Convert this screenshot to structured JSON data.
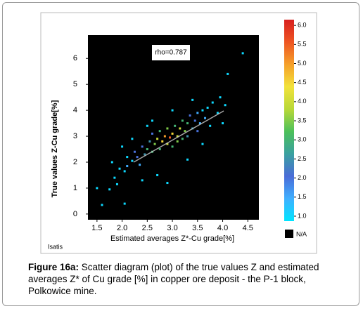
{
  "chart_data": {
    "type": "scatter",
    "annotation": "rho=0.787",
    "footer": "Isatis",
    "xlabel": "Estimated averages Z*-Cu grade[%]",
    "ylabel": "True values Z-Cu grade[%]",
    "xlim": [
      1.32,
      4.72
    ],
    "ylim": [
      -0.22,
      6.9
    ],
    "xticks": [
      1.5,
      {
        "value": 2,
        "label": "2.0"
      },
      2.5,
      {
        "value": 3,
        "label": "3.0"
      },
      3.5,
      {
        "value": 4,
        "label": "4.0"
      },
      4.5
    ],
    "yticks": [
      0,
      1,
      2,
      3,
      4,
      5,
      6
    ],
    "background": "#000000",
    "clim": [
      0.87,
      6.15
    ],
    "colorscale": [
      "#00e5ff",
      "#3fb0ff",
      "#4a6cd8",
      "#3aa0a0",
      "#4cc05a",
      "#b8d838",
      "#f2e23a",
      "#f5a02a",
      "#ee5522",
      "#d82020"
    ],
    "cticks": [
      {
        "value": 1,
        "label": "1.0"
      },
      1.5,
      {
        "value": 2,
        "label": "2.0"
      },
      2.5,
      {
        "value": 3,
        "label": "3.0"
      },
      3.5,
      {
        "value": 4,
        "label": "4.0"
      },
      4.5,
      {
        "value": 5,
        "label": "5.0"
      },
      5.5,
      {
        "value": 6,
        "label": "6.0"
      }
    ],
    "na_label": "N/A",
    "x": [
      1.6,
      1.75,
      1.85,
      1.9,
      1.95,
      2.05,
      2.1,
      2.1,
      2.2,
      2.25,
      2.3,
      2.35,
      2.4,
      2.45,
      2.5,
      2.55,
      2.6,
      2.6,
      2.65,
      2.7,
      2.75,
      2.75,
      2.8,
      2.85,
      2.9,
      2.9,
      2.95,
      3.0,
      3.0,
      3.05,
      3.1,
      3.1,
      3.15,
      3.2,
      3.2,
      3.25,
      3.3,
      3.3,
      3.35,
      3.4,
      3.45,
      3.5,
      3.5,
      3.55,
      3.6,
      3.65,
      3.7,
      3.75,
      3.8,
      3.9,
      3.95,
      4.05,
      4.1,
      4.4,
      2.4,
      2.7,
      2.2,
      2.5,
      1.5,
      2.05,
      2.9,
      3.3,
      2.6,
      3.0,
      3.4,
      1.8,
      2.0,
      3.6,
      4.0
    ],
    "y": [
      0.35,
      0.95,
      1.4,
      1.15,
      1.75,
      1.65,
      2.2,
      1.85,
      2.05,
      2.4,
      2.2,
      1.9,
      2.6,
      2.3,
      2.5,
      2.8,
      2.4,
      3.1,
      2.7,
      2.9,
      2.5,
      3.2,
      2.8,
      3.0,
      2.7,
      3.3,
      2.95,
      3.1,
      2.6,
      3.4,
      3.0,
      2.8,
      3.3,
      3.6,
      2.9,
      3.2,
      3.5,
      3.0,
      3.8,
      3.3,
      3.6,
      3.9,
      3.2,
      3.5,
      4.0,
      3.7,
      4.1,
      3.4,
      4.3,
      3.9,
      4.5,
      4.2,
      5.4,
      6.2,
      1.3,
      1.5,
      2.9,
      3.4,
      1.0,
      0.4,
      1.2,
      2.1,
      3.6,
      4.0,
      4.4,
      2.0,
      2.6,
      2.7,
      3.5
    ],
    "density": [
      1,
      1,
      1,
      1,
      1,
      1,
      1,
      1.5,
      1,
      2,
      2,
      1.5,
      2,
      2.5,
      3,
      2.5,
      3,
      2,
      3.5,
      4,
      3,
      3,
      4.5,
      5,
      4,
      3.5,
      5.5,
      4.5,
      3,
      3,
      4,
      3.5,
      4,
      3,
      3,
      3.5,
      3,
      2.5,
      2,
      2.5,
      2,
      1.5,
      2,
      1.5,
      1,
      1.5,
      1,
      1,
      1,
      1,
      1,
      1,
      1,
      1,
      1,
      1,
      1,
      1,
      1,
      1,
      1,
      1,
      1,
      1,
      1,
      1,
      1,
      1,
      1
    ]
  },
  "caption_label": "Figure 16a:",
  "caption": "Scatter diagram (plot) of the true values Z and estimated averages Z* of Cu grade [%] in copper ore deposit  - the P-1 block, Polkowice mine."
}
